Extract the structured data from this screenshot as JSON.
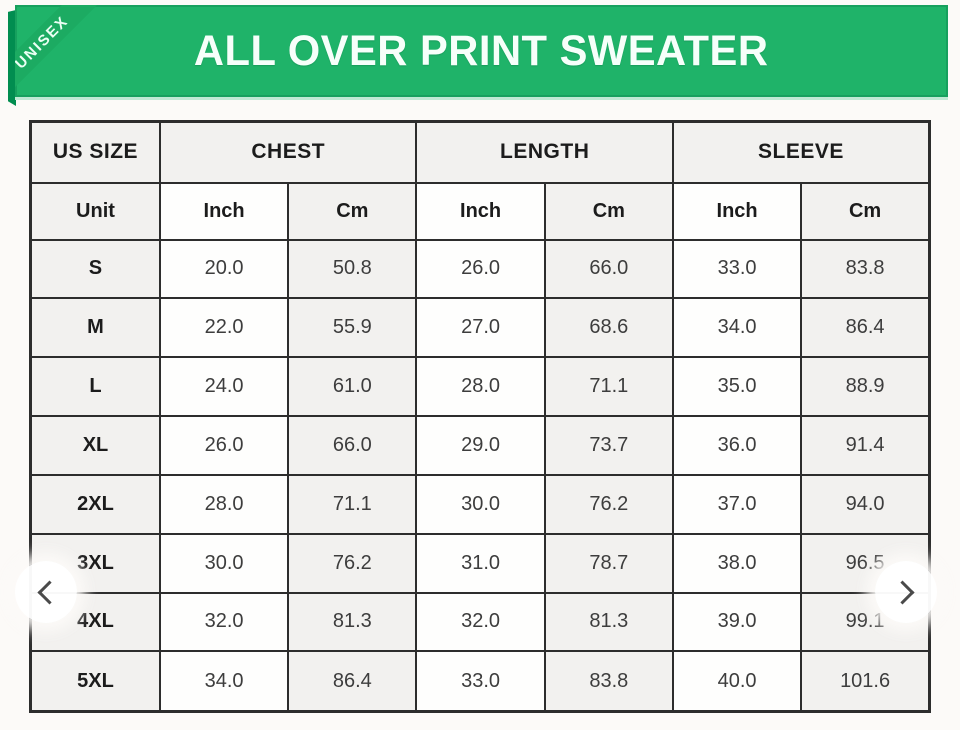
{
  "banner": {
    "title": "ALL OVER PRINT SWEATER",
    "ribbon_label": "UNISEX",
    "bg_color": "#1fb369",
    "fold_color": "#018d50",
    "text_color": "#f6fffa"
  },
  "carousel": {
    "prev_icon": "chevron-left",
    "next_icon": "chevron-right"
  },
  "table": {
    "group_headers": [
      {
        "label": "US SIZE",
        "span": 1
      },
      {
        "label": "CHEST",
        "span": 2
      },
      {
        "label": "LENGTH",
        "span": 2
      },
      {
        "label": "SLEEVE",
        "span": 2
      }
    ],
    "unit_row": [
      "Unit",
      "Inch",
      "Cm",
      "Inch",
      "Cm",
      "Inch",
      "Cm"
    ],
    "rows": [
      {
        "size": "S",
        "values": [
          "20.0",
          "50.8",
          "26.0",
          "66.0",
          "33.0",
          "83.8"
        ]
      },
      {
        "size": "M",
        "values": [
          "22.0",
          "55.9",
          "27.0",
          "68.6",
          "34.0",
          "86.4"
        ]
      },
      {
        "size": "L",
        "values": [
          "24.0",
          "61.0",
          "28.0",
          "71.1",
          "35.0",
          "88.9"
        ]
      },
      {
        "size": "XL",
        "values": [
          "26.0",
          "66.0",
          "29.0",
          "73.7",
          "36.0",
          "91.4"
        ]
      },
      {
        "size": "2XL",
        "values": [
          "28.0",
          "71.1",
          "30.0",
          "76.2",
          "37.0",
          "94.0"
        ]
      },
      {
        "size": "3XL",
        "values": [
          "30.0",
          "76.2",
          "31.0",
          "78.7",
          "38.0",
          "96.5"
        ]
      },
      {
        "size": "4XL",
        "values": [
          "32.0",
          "81.3",
          "32.0",
          "81.3",
          "39.0",
          "99.1"
        ]
      },
      {
        "size": "5XL",
        "values": [
          "34.0",
          "86.4",
          "33.0",
          "83.8",
          "40.0",
          "101.6"
        ]
      }
    ]
  },
  "colors": {
    "table_border": "#2d2d2d",
    "cell_gray": "#f2f1ef",
    "cell_white": "#fefefd",
    "header_text": "#1c1c1c",
    "value_text": "#3d3d3d"
  }
}
